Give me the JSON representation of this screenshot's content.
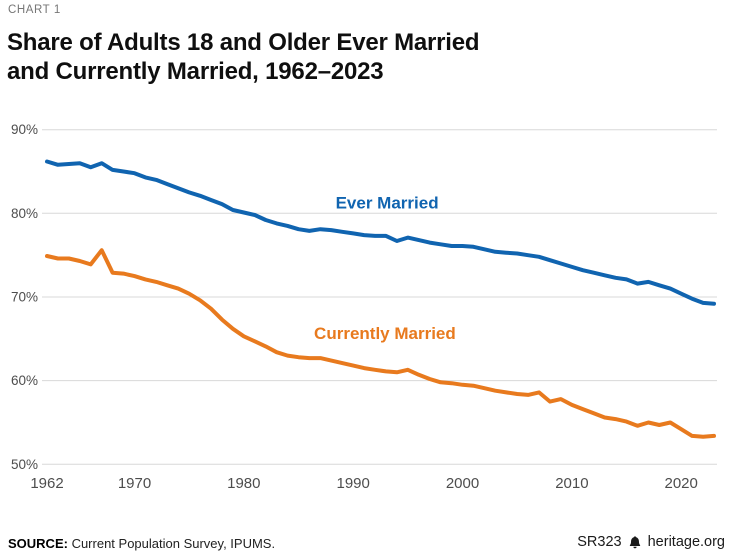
{
  "header": {
    "eyebrow": "CHART 1",
    "title_lines": [
      "Share of Adults 18 and Older Ever Married",
      "and Currently Married, 1962–2023"
    ]
  },
  "footer": {
    "source_label": "SOURCE:",
    "source_text": " Current Population Survey, IPUMS.",
    "report_id": "SR323",
    "site": "heritage.org",
    "bell_icon": "heritage-liberty-bell",
    "icon_color": "#1a1a1a"
  },
  "chart_data": {
    "type": "line",
    "title": "Share of Adults 18 and Older Ever Married and Currently Married, 1962–2023",
    "xlabel": "",
    "ylabel": "",
    "x_start": 1962,
    "x_end": 2023,
    "x_ticks": [
      1962,
      1970,
      1980,
      1990,
      2000,
      2010,
      2020
    ],
    "y_ticks": [
      90,
      80,
      70,
      60,
      50
    ],
    "y_tick_suffix": "%",
    "ylim": [
      50,
      90
    ],
    "grid": "horizontal-only",
    "legend_position": "inline-labels",
    "style": {
      "grid_color": "#d8d8d8",
      "tick_color": "#4d4d4d",
      "line_width": 4
    },
    "series": [
      {
        "name": "Ever Married",
        "color": "#1064b0",
        "label_pos": {
          "x": 1993.1,
          "y": 81.3
        },
        "values": [
          86.2,
          85.8,
          85.9,
          86.0,
          85.5,
          86.0,
          85.2,
          85.0,
          84.8,
          84.3,
          84.0,
          83.5,
          83.0,
          82.5,
          82.1,
          81.6,
          81.1,
          80.4,
          80.1,
          79.8,
          79.2,
          78.8,
          78.5,
          78.1,
          77.9,
          78.1,
          78.0,
          77.8,
          77.6,
          77.4,
          77.3,
          77.3,
          76.7,
          77.1,
          76.8,
          76.5,
          76.3,
          76.1,
          76.1,
          76.0,
          75.7,
          75.4,
          75.3,
          75.2,
          75.0,
          74.8,
          74.4,
          74.0,
          73.6,
          73.2,
          72.9,
          72.6,
          72.3,
          72.1,
          71.6,
          71.8,
          71.4,
          71.0,
          70.4,
          69.8,
          69.3,
          69.2
        ]
      },
      {
        "name": "Currently Married",
        "color": "#e87a1e",
        "label_pos": {
          "x": 1992.9,
          "y": 65.7
        },
        "values": [
          74.9,
          74.6,
          74.6,
          74.3,
          73.9,
          75.6,
          72.9,
          72.8,
          72.5,
          72.1,
          71.8,
          71.4,
          71.0,
          70.4,
          69.6,
          68.6,
          67.3,
          66.2,
          65.3,
          64.7,
          64.1,
          63.4,
          63.0,
          62.8,
          62.7,
          62.7,
          62.4,
          62.1,
          61.8,
          61.5,
          61.3,
          61.1,
          61.0,
          61.3,
          60.7,
          60.2,
          59.8,
          59.7,
          59.5,
          59.4,
          59.1,
          58.8,
          58.6,
          58.4,
          58.3,
          58.6,
          57.5,
          57.8,
          57.1,
          56.6,
          56.1,
          55.6,
          55.4,
          55.1,
          54.6,
          55.0,
          54.7,
          55.0,
          54.2,
          53.4,
          53.3,
          53.4
        ]
      }
    ]
  }
}
